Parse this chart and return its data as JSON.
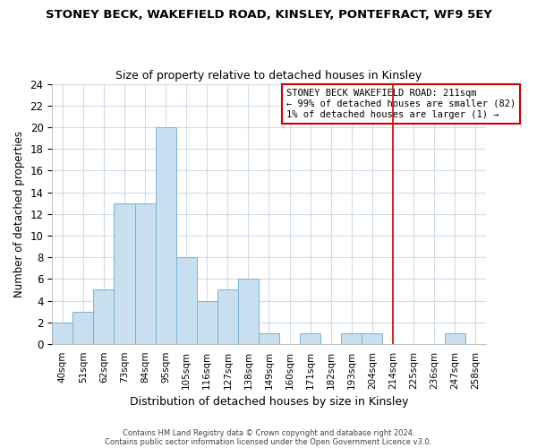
{
  "title": "STONEY BECK, WAKEFIELD ROAD, KINSLEY, PONTEFRACT, WF9 5EY",
  "subtitle": "Size of property relative to detached houses in Kinsley",
  "xlabel": "Distribution of detached houses by size in Kinsley",
  "ylabel": "Number of detached properties",
  "bar_color": "#c8dff0",
  "bar_edge_color": "#7ab3d4",
  "bin_labels": [
    "40sqm",
    "51sqm",
    "62sqm",
    "73sqm",
    "84sqm",
    "95sqm",
    "105sqm",
    "116sqm",
    "127sqm",
    "138sqm",
    "149sqm",
    "160sqm",
    "171sqm",
    "182sqm",
    "193sqm",
    "204sqm",
    "214sqm",
    "225sqm",
    "236sqm",
    "247sqm",
    "258sqm"
  ],
  "bin_values": [
    2,
    3,
    5,
    13,
    13,
    20,
    8,
    4,
    5,
    6,
    1,
    0,
    1,
    0,
    1,
    1,
    0,
    0,
    0,
    1,
    0
  ],
  "ylim": [
    0,
    24
  ],
  "yticks": [
    0,
    2,
    4,
    6,
    8,
    10,
    12,
    14,
    16,
    18,
    20,
    22,
    24
  ],
  "vline_x": 16.5,
  "vline_color": "#cc0000",
  "annotation_title": "STONEY BECK WAKEFIELD ROAD: 211sqm",
  "annotation_line1": "← 99% of detached houses are smaller (82)",
  "annotation_line2": "1% of detached houses are larger (1) →",
  "footer1": "Contains HM Land Registry data © Crown copyright and database right 2024.",
  "footer2": "Contains public sector information licensed under the Open Government Licence v3.0.",
  "plot_bg_color": "#ffffff",
  "fig_bg_color": "#ffffff",
  "grid_color": "#d0dce8"
}
